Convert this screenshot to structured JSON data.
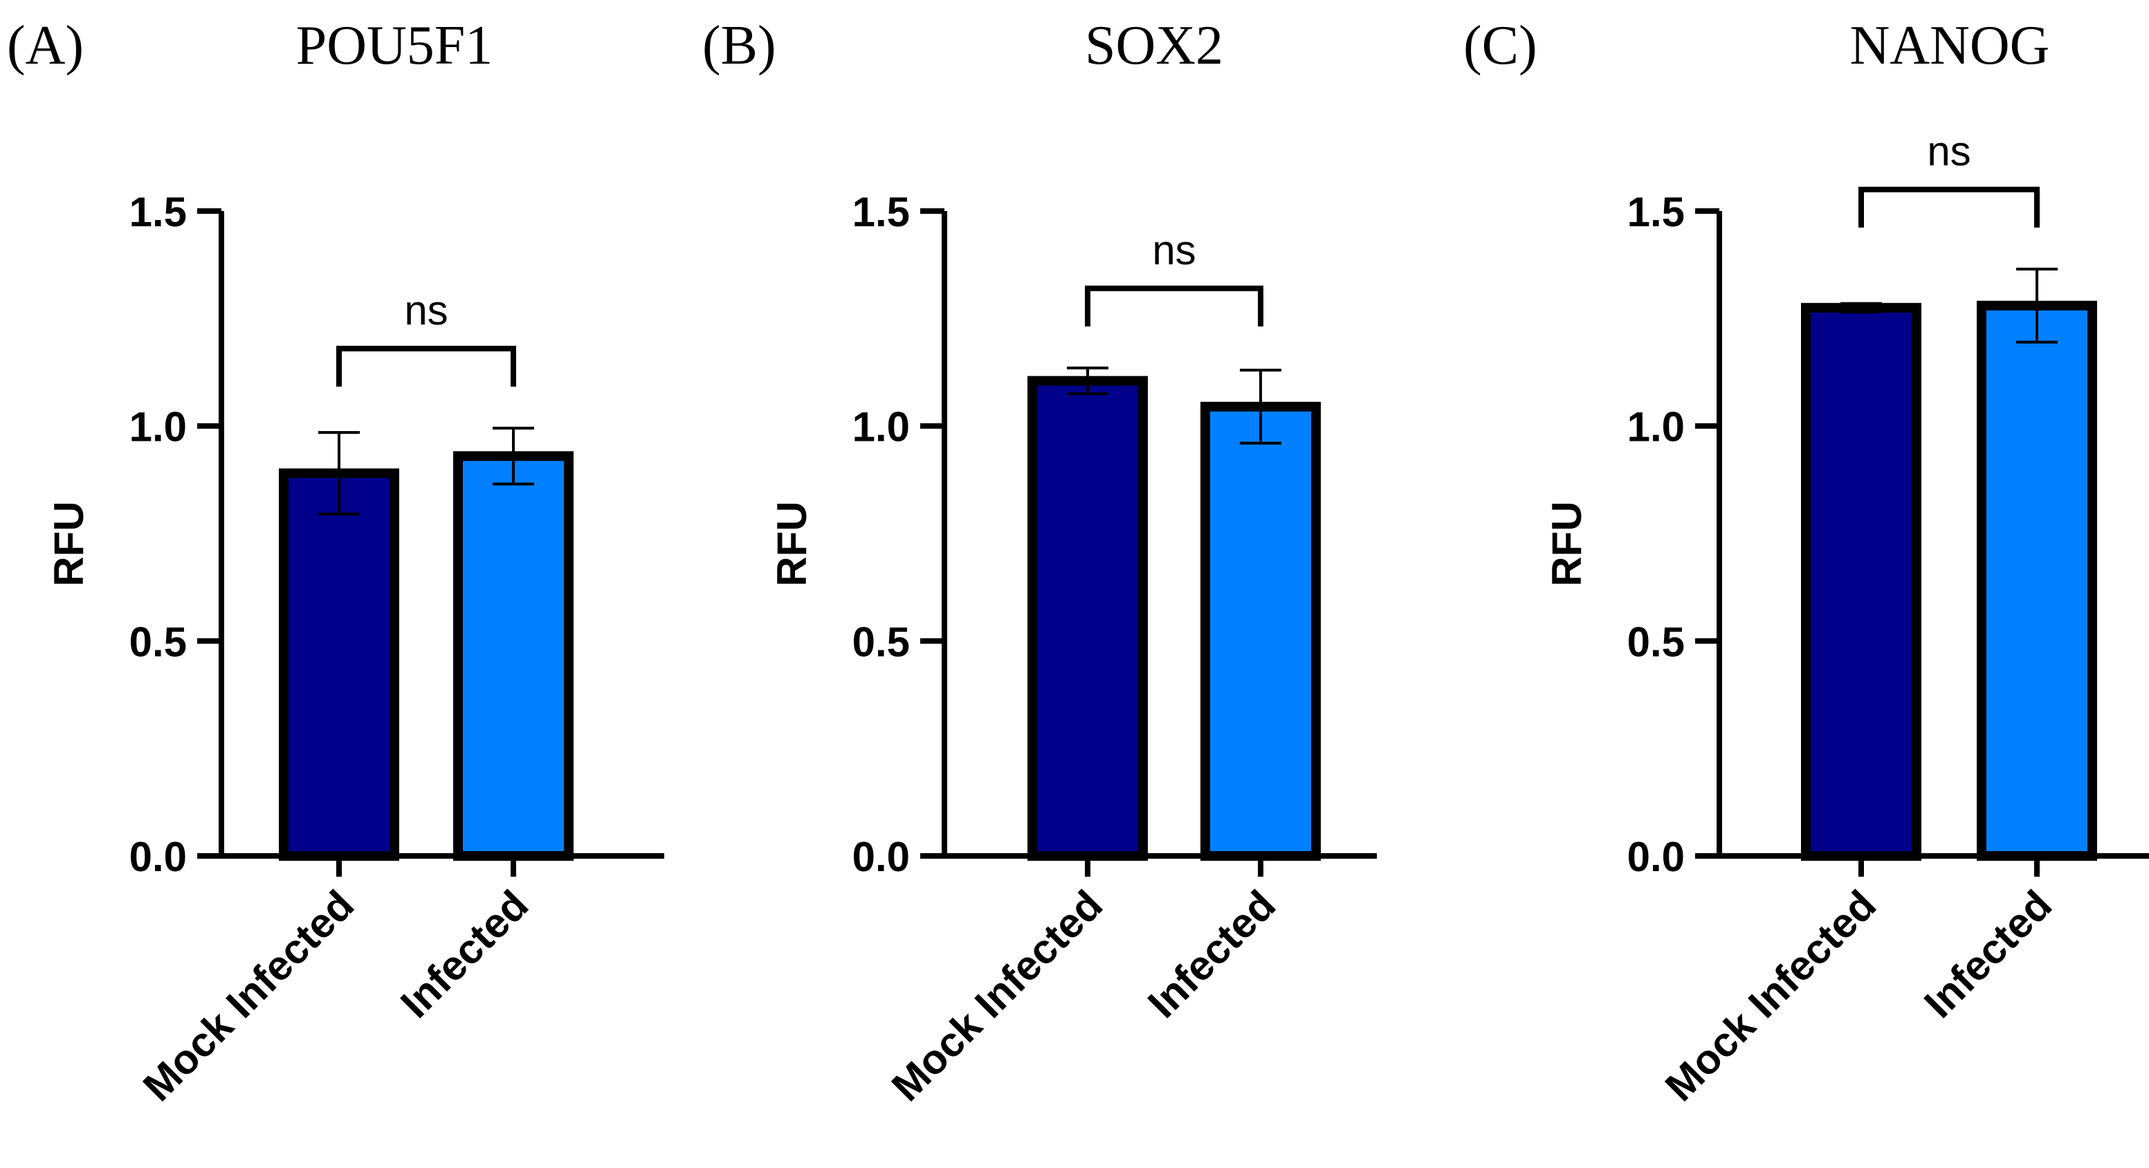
{
  "chart_data": [
    {
      "panel": "(A)",
      "type": "bar",
      "title": "POU5F1",
      "ylabel": "RFU",
      "xlabel": "",
      "ylim": [
        0,
        1.5
      ],
      "yticks": [
        "0.0",
        "0.5",
        "1.0",
        "1.5"
      ],
      "categories": [
        "Mock Infected",
        "Infected"
      ],
      "values": [
        0.89,
        0.93
      ],
      "errors": [
        0.095,
        0.065
      ],
      "colors": [
        "#00008b",
        "#0080ff"
      ],
      "significance": "ns"
    },
    {
      "panel": "(B)",
      "type": "bar",
      "title": "SOX2",
      "ylabel": "RFU",
      "xlabel": "",
      "ylim": [
        0,
        1.5
      ],
      "yticks": [
        "0.0",
        "0.5",
        "1.0",
        "1.5"
      ],
      "categories": [
        "Mock Infected",
        "Infected"
      ],
      "values": [
        1.105,
        1.045
      ],
      "errors": [
        0.03,
        0.085
      ],
      "colors": [
        "#00008b",
        "#0080ff"
      ],
      "significance": "ns"
    },
    {
      "panel": "(C)",
      "type": "bar",
      "title": "NANOG",
      "ylabel": "RFU",
      "xlabel": "",
      "ylim": [
        0,
        1.5
      ],
      "yticks": [
        "0.0",
        "0.5",
        "1.0",
        "1.5"
      ],
      "categories": [
        "Mock Infected",
        "Infected"
      ],
      "values": [
        1.275,
        1.28
      ],
      "errors": [
        0.01,
        0.085
      ],
      "colors": [
        "#00008b",
        "#0080ff"
      ],
      "significance": "ns"
    }
  ]
}
